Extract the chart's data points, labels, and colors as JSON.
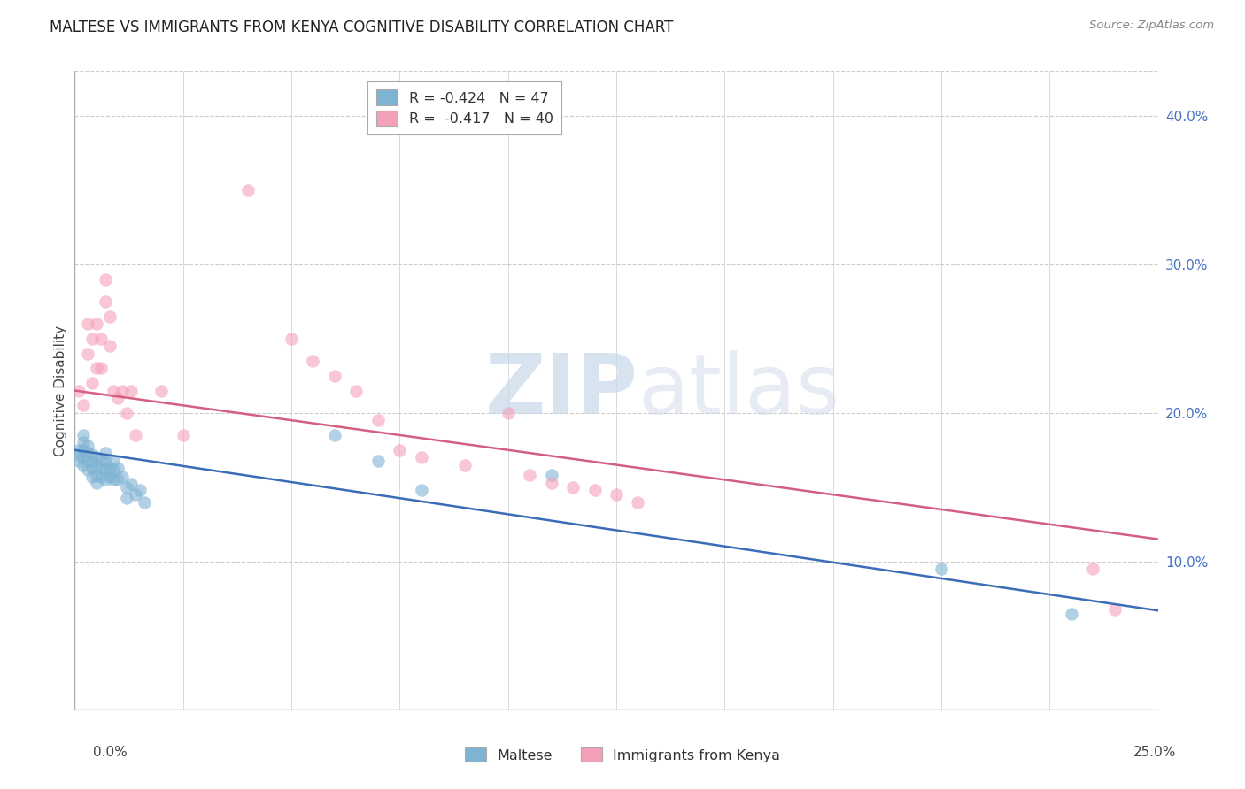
{
  "title": "MALTESE VS IMMIGRANTS FROM KENYA COGNITIVE DISABILITY CORRELATION CHART",
  "source": "Source: ZipAtlas.com",
  "ylabel": "Cognitive Disability",
  "ytick_values": [
    0.0,
    0.1,
    0.2,
    0.3,
    0.4
  ],
  "xlim": [
    0,
    0.25
  ],
  "ylim": [
    0.0,
    0.43
  ],
  "watermark_zip": "ZIP",
  "watermark_atlas": "atlas",
  "legend_line1": "R = -0.424   N = 47",
  "legend_line2": "R =  -0.417   N = 40",
  "legend_labels": [
    "Maltese",
    "Immigrants from Kenya"
  ],
  "maltese_color": "#7fb3d3",
  "kenya_color": "#f4a0b8",
  "maltese_line_color": "#3a6cb8",
  "kenya_line_color": "#d45f80",
  "background_color": "#ffffff",
  "grid_color": "#cccccc",
  "title_fontsize": 12,
  "axis_fontsize": 11,
  "tick_fontsize": 11,
  "maltese_x": [
    0.001,
    0.001,
    0.001,
    0.002,
    0.002,
    0.002,
    0.002,
    0.002,
    0.003,
    0.003,
    0.003,
    0.003,
    0.004,
    0.004,
    0.004,
    0.004,
    0.005,
    0.005,
    0.005,
    0.005,
    0.006,
    0.006,
    0.006,
    0.007,
    0.007,
    0.007,
    0.007,
    0.008,
    0.008,
    0.009,
    0.009,
    0.009,
    0.01,
    0.01,
    0.011,
    0.012,
    0.012,
    0.013,
    0.014,
    0.015,
    0.016,
    0.06,
    0.07,
    0.08,
    0.11,
    0.2,
    0.23
  ],
  "maltese_y": [
    0.175,
    0.172,
    0.168,
    0.185,
    0.18,
    0.175,
    0.17,
    0.165,
    0.178,
    0.173,
    0.168,
    0.162,
    0.172,
    0.168,
    0.163,
    0.157,
    0.17,
    0.165,
    0.158,
    0.153,
    0.168,
    0.163,
    0.157,
    0.173,
    0.168,
    0.162,
    0.155,
    0.163,
    0.157,
    0.168,
    0.162,
    0.155,
    0.163,
    0.155,
    0.157,
    0.15,
    0.143,
    0.152,
    0.145,
    0.148,
    0.14,
    0.185,
    0.168,
    0.148,
    0.158,
    0.095,
    0.065
  ],
  "kenya_x": [
    0.001,
    0.002,
    0.003,
    0.003,
    0.004,
    0.004,
    0.005,
    0.005,
    0.006,
    0.006,
    0.007,
    0.007,
    0.008,
    0.008,
    0.009,
    0.01,
    0.011,
    0.012,
    0.013,
    0.014,
    0.02,
    0.025,
    0.04,
    0.05,
    0.055,
    0.06,
    0.065,
    0.07,
    0.075,
    0.08,
    0.09,
    0.1,
    0.105,
    0.11,
    0.115,
    0.12,
    0.125,
    0.13,
    0.235,
    0.24
  ],
  "kenya_y": [
    0.215,
    0.205,
    0.26,
    0.24,
    0.25,
    0.22,
    0.26,
    0.23,
    0.25,
    0.23,
    0.275,
    0.29,
    0.265,
    0.245,
    0.215,
    0.21,
    0.215,
    0.2,
    0.215,
    0.185,
    0.215,
    0.185,
    0.35,
    0.25,
    0.235,
    0.225,
    0.215,
    0.195,
    0.175,
    0.17,
    0.165,
    0.2,
    0.158,
    0.153,
    0.15,
    0.148,
    0.145,
    0.14,
    0.095,
    0.068
  ]
}
